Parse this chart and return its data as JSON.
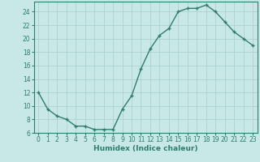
{
  "x": [
    0,
    1,
    2,
    3,
    4,
    5,
    6,
    7,
    8,
    9,
    10,
    11,
    12,
    13,
    14,
    15,
    16,
    17,
    18,
    19,
    20,
    21,
    22,
    23
  ],
  "y": [
    12,
    9.5,
    8.5,
    8,
    7,
    7,
    6.5,
    6.5,
    6.5,
    9.5,
    11.5,
    15.5,
    18.5,
    20.5,
    21.5,
    24,
    24.5,
    24.5,
    25,
    24,
    22.5,
    21,
    20,
    19
  ],
  "line_color": "#2e7d6e",
  "marker": "+",
  "marker_size": 3.5,
  "marker_linewidth": 1.0,
  "line_width": 1.0,
  "background_color": "#c8e8e8",
  "grid_color": "#aacccc",
  "xlabel": "Humidex (Indice chaleur)",
  "xlabel_fontsize": 6.5,
  "tick_fontsize": 5.5,
  "ylim": [
    6,
    25.5
  ],
  "xlim": [
    -0.5,
    23.5
  ],
  "yticks": [
    6,
    8,
    10,
    12,
    14,
    16,
    18,
    20,
    22,
    24
  ],
  "xticks": [
    0,
    1,
    2,
    3,
    4,
    5,
    6,
    7,
    8,
    9,
    10,
    11,
    12,
    13,
    14,
    15,
    16,
    17,
    18,
    19,
    20,
    21,
    22,
    23
  ]
}
